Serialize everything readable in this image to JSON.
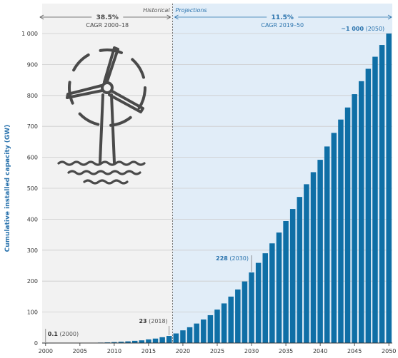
{
  "chart_data": {
    "type": "bar",
    "ylabel": "Cumulative installed capacity (GW)",
    "xlabel": "",
    "ylim": [
      0,
      1000
    ],
    "yticks": [
      "0",
      "100",
      "200",
      "300",
      "400",
      "500",
      "600",
      "700",
      "800",
      "900",
      "1 000"
    ],
    "xticks": [
      "2000",
      "2005",
      "2010",
      "2015",
      "2020",
      "2025",
      "2030",
      "2035",
      "2040",
      "2045",
      "2050"
    ],
    "grid": true,
    "categories": [
      2000,
      2001,
      2002,
      2003,
      2004,
      2005,
      2006,
      2007,
      2008,
      2009,
      2010,
      2011,
      2012,
      2013,
      2014,
      2015,
      2016,
      2017,
      2018,
      2019,
      2020,
      2021,
      2022,
      2023,
      2024,
      2025,
      2026,
      2027,
      2028,
      2029,
      2030,
      2031,
      2032,
      2033,
      2034,
      2035,
      2036,
      2037,
      2038,
      2039,
      2040,
      2041,
      2042,
      2043,
      2044,
      2045,
      2046,
      2047,
      2048,
      2049,
      2050
    ],
    "values": [
      0.1,
      0.2,
      0.3,
      0.5,
      0.6,
      0.7,
      0.9,
      1.1,
      1.5,
      2.1,
      3.0,
      4.1,
      5.4,
      7.2,
      8.7,
      11.7,
      14.4,
      18.8,
      23,
      31,
      41,
      51,
      63,
      76,
      90,
      108,
      128,
      150,
      173,
      199,
      228,
      259,
      290,
      322,
      357,
      394,
      433,
      472,
      513,
      552,
      592,
      635,
      679,
      722,
      761,
      804,
      846,
      886,
      925,
      963,
      1000
    ],
    "regions": [
      {
        "label": "Historical",
        "cagr_value": "38.5%",
        "cagr_label": "CAGR 2000–18"
      },
      {
        "label": "Projections",
        "cagr_value": "11.5%",
        "cagr_label": "CAGR 2019–50"
      }
    ],
    "annotations": [
      {
        "year": 2000,
        "value_text": "0.1",
        "year_text": "(2000)"
      },
      {
        "year": 2018,
        "value_text": "23",
        "year_text": "(2018)"
      },
      {
        "year": 2030,
        "value_text": "228",
        "year_text": "(2030)"
      },
      {
        "year": 2050,
        "value_text": "~1 000",
        "year_text": "(2050)"
      }
    ]
  },
  "colors": {
    "bar": "#0f6fa6",
    "historical_bg": "#f2f2f2",
    "projection_bg": "#e1edf8",
    "projection_text": "#2a73ad",
    "icon": "#4a4a4a",
    "gridline": "#cccccc"
  },
  "icon": "offshore-wind-turbine-icon"
}
